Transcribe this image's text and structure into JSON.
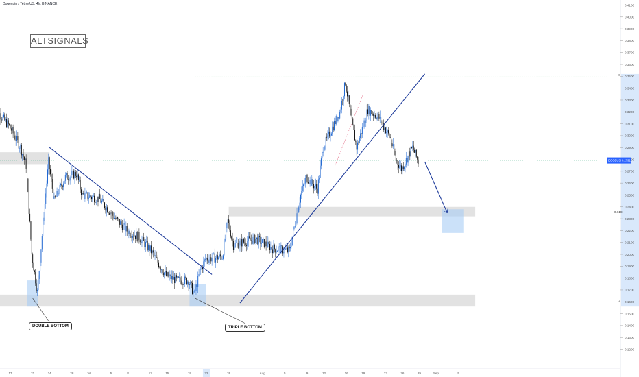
{
  "header": {
    "title": "Dogecoin / TetherUS, 4h, BINANCE"
  },
  "brand": {
    "logo_text": "ALTSIGNALS"
  },
  "colors": {
    "up": "#1e66d0",
    "down": "#111111",
    "line": "#1f3c9b",
    "zone": "#d6d6d6",
    "highlight": "#a9cdf5"
  },
  "chart_data": {
    "type": "candlestick",
    "title": "Dogecoin / TetherUS, 4h, BINANCE",
    "ylim": [
      0.11,
      0.42
    ],
    "y_ticks": [
      "0.4100",
      "0.4000",
      "0.3900",
      "0.3800",
      "0.3700",
      "0.3600",
      "0.3500",
      "0.3400",
      "0.3300",
      "0.3200",
      "0.3100",
      "0.3000",
      "0.2900",
      "0.2800",
      "0.2700",
      "0.2600",
      "0.2500",
      "0.2400",
      "0.2300",
      "0.2200",
      "0.2100",
      "0.2000",
      "0.1900",
      "0.1800",
      "0.1700",
      "0.1600",
      "0.1500",
      "0.1400",
      "0.1300",
      "0.1200"
    ],
    "x_ticks": [
      "17",
      "21",
      "24",
      "28",
      "Jul",
      "5",
      "8",
      "12",
      "15",
      "19",
      "22",
      "26",
      "Aug",
      "5",
      "9",
      "12",
      "16",
      "19",
      "23",
      "26",
      "29",
      "Sep",
      "5"
    ],
    "price_path": [
      {
        "date": "Jun 14",
        "price": 0.325
      },
      {
        "date": "Jun 17",
        "price": 0.308
      },
      {
        "date": "Jun 19",
        "price": 0.29
      },
      {
        "date": "Jun 20",
        "price": 0.275
      },
      {
        "date": "Jun 21",
        "price": 0.2
      },
      {
        "date": "Jun 22",
        "price": 0.168
      },
      {
        "date": "Jun 23",
        "price": 0.225
      },
      {
        "date": "Jun 24",
        "price": 0.278
      },
      {
        "date": "Jun 25",
        "price": 0.245
      },
      {
        "date": "Jun 27",
        "price": 0.265
      },
      {
        "date": "Jun 29",
        "price": 0.268
      },
      {
        "date": "Jun 30",
        "price": 0.25
      },
      {
        "date": "Jul 3",
        "price": 0.247
      },
      {
        "date": "Jul 6",
        "price": 0.23
      },
      {
        "date": "Jul 8",
        "price": 0.22
      },
      {
        "date": "Jul 10",
        "price": 0.215
      },
      {
        "date": "Jul 12",
        "price": 0.205
      },
      {
        "date": "Jul 15",
        "price": 0.182
      },
      {
        "date": "Jul 17",
        "price": 0.178
      },
      {
        "date": "Jul 19",
        "price": 0.178
      },
      {
        "date": "Jul 20",
        "price": 0.166
      },
      {
        "date": "Jul 21",
        "price": 0.185
      },
      {
        "date": "Jul 22",
        "price": 0.196
      },
      {
        "date": "Jul 25",
        "price": 0.198
      },
      {
        "date": "Jul 26",
        "price": 0.228
      },
      {
        "date": "Jul 27",
        "price": 0.208
      },
      {
        "date": "Jul 31",
        "price": 0.213
      },
      {
        "date": "Aug 3",
        "price": 0.205
      },
      {
        "date": "Aug 6",
        "price": 0.203
      },
      {
        "date": "Aug 8",
        "price": 0.25
      },
      {
        "date": "Aug 9",
        "price": 0.265
      },
      {
        "date": "Aug 11",
        "price": 0.255
      },
      {
        "date": "Aug 12",
        "price": 0.29
      },
      {
        "date": "Aug 15",
        "price": 0.32
      },
      {
        "date": "Aug 16",
        "price": 0.345
      },
      {
        "date": "Aug 17",
        "price": 0.315
      },
      {
        "date": "Aug 18",
        "price": 0.29
      },
      {
        "date": "Aug 20",
        "price": 0.322
      },
      {
        "date": "Aug 22",
        "price": 0.315
      },
      {
        "date": "Aug 24",
        "price": 0.298
      },
      {
        "date": "Aug 25",
        "price": 0.28
      },
      {
        "date": "Aug 26",
        "price": 0.272
      },
      {
        "date": "Aug 28",
        "price": 0.29
      },
      {
        "date": "Aug 29",
        "price": 0.278
      }
    ],
    "current_price_label": "DOGEUSDT",
    "current_price": "0.2791",
    "fib_label": "0.618",
    "fib_level": 0.2355,
    "level_zero": "0",
    "level_one": "1",
    "trendlines": [
      {
        "from": {
          "date": "Jun 24",
          "price": 0.29
        },
        "to": {
          "date": "Jul 23",
          "price": 0.183
        }
      },
      {
        "from": {
          "date": "Jul 28",
          "price": 0.159
        },
        "to": {
          "date": "Aug 30",
          "price": 0.352
        }
      }
    ],
    "projection": [
      {
        "date": "Aug 30",
        "price": 0.278
      },
      {
        "date": "Sep 3",
        "price": 0.235
      }
    ],
    "zones": [
      {
        "price_from": 0.286,
        "price_to": 0.276,
        "date_from": "Jun 14",
        "date_to": "Jun 24"
      },
      {
        "price_from": 0.24,
        "price_to": 0.232,
        "date_from": "Jul 26",
        "date_to": "Sep 8"
      },
      {
        "price_from": 0.166,
        "price_to": 0.156,
        "date_from": "Jun 14",
        "date_to": "Sep 8"
      }
    ],
    "annotations": [
      "DOUBLE BOTTOM",
      "TRIPLE BOTTOM"
    ]
  }
}
